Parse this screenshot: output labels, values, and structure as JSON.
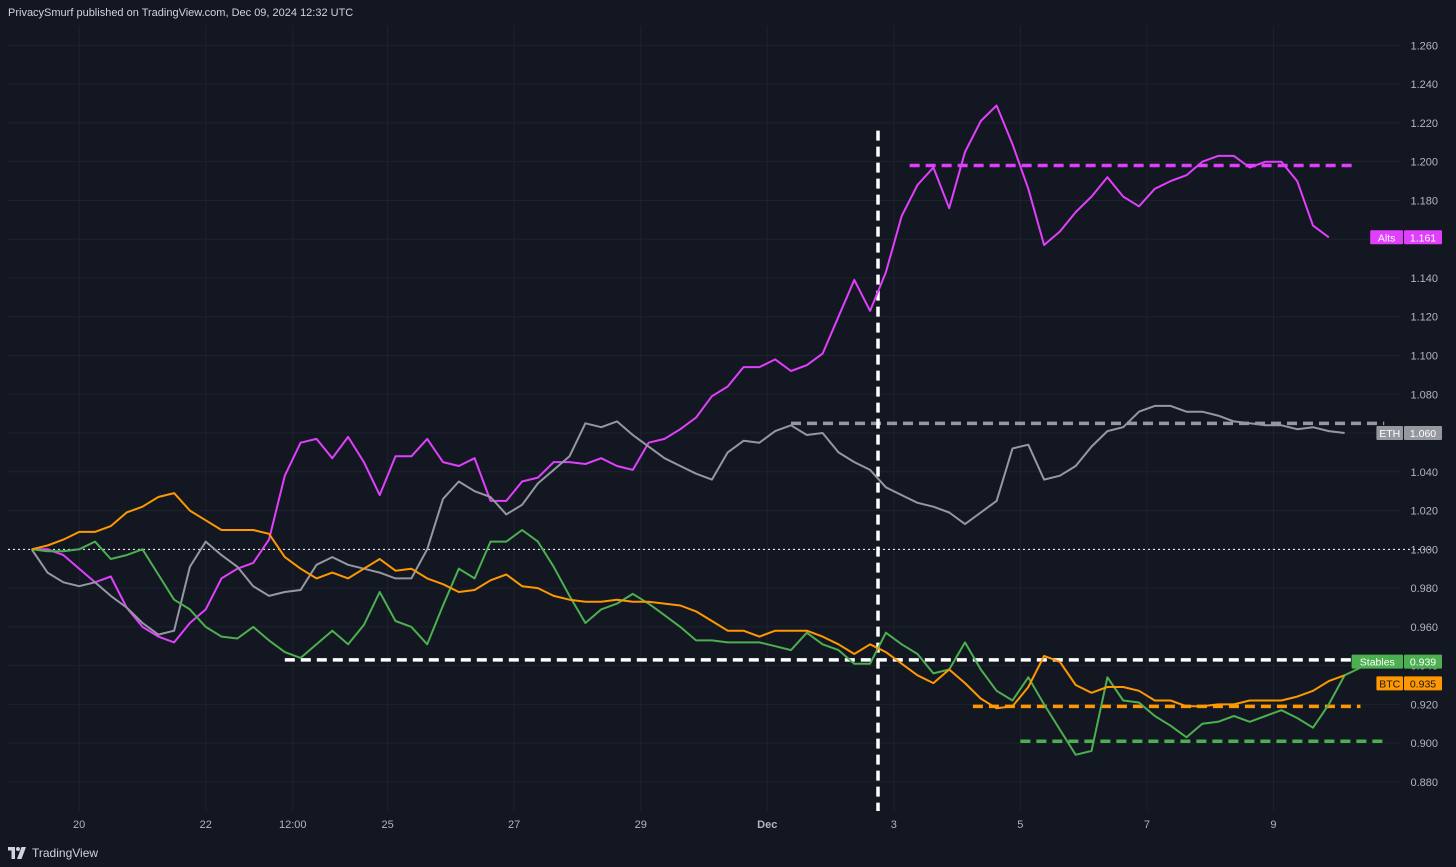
{
  "header": {
    "publisher_text": "PrivacySmurf published on TradingView.com, Dec 09, 2024 12:32 UTC"
  },
  "footer": {
    "brand": "TradingView"
  },
  "chart_data": {
    "type": "line",
    "title": "",
    "xlabel": "",
    "ylabel": "",
    "x_ticks": [
      {
        "label": "20",
        "x": 3
      },
      {
        "label": "22",
        "x": 11
      },
      {
        "label": "12:00",
        "x": 16.5
      },
      {
        "label": "25",
        "x": 22.5
      },
      {
        "label": "27",
        "x": 30.5
      },
      {
        "label": "29",
        "x": 38.5
      },
      {
        "label": "Dec",
        "x": 46.5
      },
      {
        "label": "3",
        "x": 54.5
      },
      {
        "label": "5",
        "x": 62.5
      },
      {
        "label": "7",
        "x": 70.5
      },
      {
        "label": "9",
        "x": 78.5
      }
    ],
    "xlim": [
      -1.5,
      86.5
    ],
    "ylim": [
      0.865,
      1.27
    ],
    "y_ticks": [
      "0.880",
      "0.900",
      "0.920",
      "0.940",
      "0.960",
      "0.980",
      "1.000",
      "1.020",
      "1.040",
      "1.060",
      "1.080",
      "1.100",
      "1.120",
      "1.140",
      "1.160",
      "1.180",
      "1.200",
      "1.220",
      "1.240",
      "1.260"
    ],
    "grid": true,
    "colors": {
      "Alts": "#e040fb",
      "ETH": "#9598a1",
      "Stables": "#4caf50",
      "BTC": "#ff9800",
      "annotation": "#ffffff"
    },
    "series": [
      {
        "name": "Alts",
        "last_value": "1.161",
        "values": [
          1.0,
          1.0,
          0.997,
          0.99,
          0.983,
          0.986,
          0.97,
          0.96,
          0.955,
          0.952,
          0.962,
          0.969,
          0.985,
          0.99,
          0.993,
          1.005,
          1.038,
          1.055,
          1.057,
          1.047,
          1.058,
          1.045,
          1.028,
          1.048,
          1.048,
          1.057,
          1.045,
          1.043,
          1.047,
          1.025,
          1.025,
          1.035,
          1.037,
          1.045,
          1.045,
          1.044,
          1.047,
          1.043,
          1.041,
          1.055,
          1.057,
          1.062,
          1.068,
          1.079,
          1.084,
          1.094,
          1.094,
          1.098,
          1.092,
          1.095,
          1.101,
          1.12,
          1.139,
          1.123,
          1.143,
          1.172,
          1.188,
          1.197,
          1.176,
          1.205,
          1.221,
          1.229,
          1.209,
          1.186,
          1.157,
          1.164,
          1.174,
          1.182,
          1.192,
          1.182,
          1.177,
          1.186,
          1.19,
          1.193,
          1.2,
          1.203,
          1.203,
          1.197,
          1.2,
          1.2,
          1.19,
          1.167,
          1.161
        ]
      },
      {
        "name": "ETH",
        "last_value": "1.060",
        "values": [
          1.0,
          0.988,
          0.983,
          0.981,
          0.983,
          0.976,
          0.97,
          0.962,
          0.956,
          0.958,
          0.991,
          1.004,
          0.997,
          0.991,
          0.981,
          0.976,
          0.978,
          0.979,
          0.992,
          0.996,
          0.992,
          0.99,
          0.988,
          0.985,
          0.985,
          1.0,
          1.026,
          1.035,
          1.03,
          1.027,
          1.018,
          1.023,
          1.034,
          1.041,
          1.048,
          1.065,
          1.063,
          1.066,
          1.059,
          1.053,
          1.047,
          1.043,
          1.039,
          1.036,
          1.05,
          1.056,
          1.055,
          1.061,
          1.064,
          1.059,
          1.06,
          1.05,
          1.045,
          1.041,
          1.032,
          1.028,
          1.024,
          1.022,
          1.019,
          1.013,
          1.019,
          1.025,
          1.052,
          1.054,
          1.036,
          1.038,
          1.043,
          1.053,
          1.061,
          1.063,
          1.071,
          1.074,
          1.074,
          1.071,
          1.071,
          1.069,
          1.066,
          1.065,
          1.064,
          1.064,
          1.062,
          1.063,
          1.061,
          1.06
        ]
      },
      {
        "name": "Stables",
        "last_value": "0.939",
        "values": [
          1.0,
          0.999,
          0.999,
          1.0,
          1.004,
          0.995,
          0.997,
          1.0,
          0.987,
          0.974,
          0.969,
          0.96,
          0.955,
          0.954,
          0.96,
          0.953,
          0.947,
          0.944,
          0.951,
          0.958,
          0.951,
          0.961,
          0.978,
          0.963,
          0.96,
          0.951,
          0.971,
          0.99,
          0.985,
          1.004,
          1.004,
          1.01,
          1.004,
          0.991,
          0.976,
          0.962,
          0.969,
          0.972,
          0.977,
          0.972,
          0.966,
          0.96,
          0.953,
          0.953,
          0.952,
          0.952,
          0.952,
          0.95,
          0.948,
          0.957,
          0.951,
          0.948,
          0.941,
          0.941,
          0.957,
          0.951,
          0.946,
          0.936,
          0.938,
          0.952,
          0.938,
          0.927,
          0.922,
          0.934,
          0.92,
          0.907,
          0.894,
          0.896,
          0.934,
          0.922,
          0.921,
          0.914,
          0.909,
          0.903,
          0.91,
          0.911,
          0.914,
          0.911,
          0.914,
          0.917,
          0.913,
          0.908,
          0.92,
          0.935,
          0.939
        ]
      },
      {
        "name": "BTC",
        "last_value": "0.935",
        "values": [
          1.0,
          1.002,
          1.005,
          1.009,
          1.009,
          1.012,
          1.019,
          1.022,
          1.027,
          1.029,
          1.02,
          1.015,
          1.01,
          1.01,
          1.01,
          1.008,
          0.996,
          0.99,
          0.985,
          0.988,
          0.985,
          0.99,
          0.995,
          0.989,
          0.99,
          0.985,
          0.982,
          0.978,
          0.979,
          0.984,
          0.987,
          0.981,
          0.98,
          0.976,
          0.974,
          0.973,
          0.973,
          0.974,
          0.973,
          0.973,
          0.972,
          0.971,
          0.968,
          0.963,
          0.958,
          0.958,
          0.955,
          0.958,
          0.958,
          0.958,
          0.955,
          0.951,
          0.946,
          0.951,
          0.947,
          0.941,
          0.935,
          0.931,
          0.938,
          0.931,
          0.923,
          0.918,
          0.919,
          0.929,
          0.945,
          0.942,
          0.93,
          0.926,
          0.929,
          0.929,
          0.927,
          0.922,
          0.922,
          0.919,
          0.919,
          0.92,
          0.92,
          0.922,
          0.922,
          0.922,
          0.924,
          0.927,
          0.932,
          0.935
        ]
      }
    ],
    "annotations": {
      "horizontal_dashed": [
        {
          "series": "Alts",
          "y": 1.198,
          "x_start": 55.5,
          "x_end": 83.5
        },
        {
          "series": "ETH",
          "y": 1.065,
          "x_start": 48,
          "x_end": 85.5
        },
        {
          "series": "annotation",
          "y": 0.943,
          "x_start": 16,
          "x_end": 85.5
        },
        {
          "series": "BTC",
          "y": 0.919,
          "x_start": 59.5,
          "x_end": 84
        },
        {
          "series": "Stables",
          "y": 0.901,
          "x_start": 62.5,
          "x_end": 85.5
        }
      ],
      "vertical_dashed": {
        "x": 53.5,
        "y_top": 1.216,
        "y_bottom": 0.865
      },
      "baseline_dotted": {
        "y": 1.0
      }
    }
  }
}
